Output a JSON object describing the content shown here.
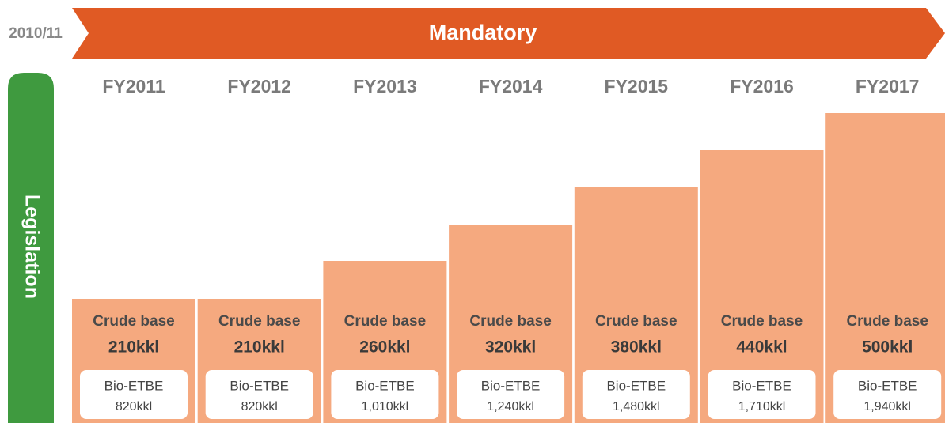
{
  "period": "2010/11",
  "banner": "Mandatory",
  "side_label": "Legislation",
  "columns": [
    {
      "year": "FY2011",
      "crude_label": "Crude base",
      "crude_value": "210kkl",
      "bio_label": "Bio-ETBE",
      "bio_value": "820kkl"
    },
    {
      "year": "FY2012",
      "crude_label": "Crude base",
      "crude_value": "210kkl",
      "bio_label": "Bio-ETBE",
      "bio_value": "820kkl"
    },
    {
      "year": "FY2013",
      "crude_label": "Crude base",
      "crude_value": "260kkl",
      "bio_label": "Bio-ETBE",
      "bio_value": "1,010kkl"
    },
    {
      "year": "FY2014",
      "crude_label": "Crude base",
      "crude_value": "320kkl",
      "bio_label": "Bio-ETBE",
      "bio_value": "1,240kkl"
    },
    {
      "year": "FY2015",
      "crude_label": "Crude base",
      "crude_value": "380kkl",
      "bio_label": "Bio-ETBE",
      "bio_value": "1,480kkl"
    },
    {
      "year": "FY2016",
      "crude_label": "Crude base",
      "crude_value": "440kkl",
      "bio_label": "Bio-ETBE",
      "bio_value": "1,710kkl"
    },
    {
      "year": "FY2017",
      "crude_label": "Crude base",
      "crude_value": "500kkl",
      "bio_label": "Bio-ETBE",
      "bio_value": "1,940kkl"
    }
  ]
}
